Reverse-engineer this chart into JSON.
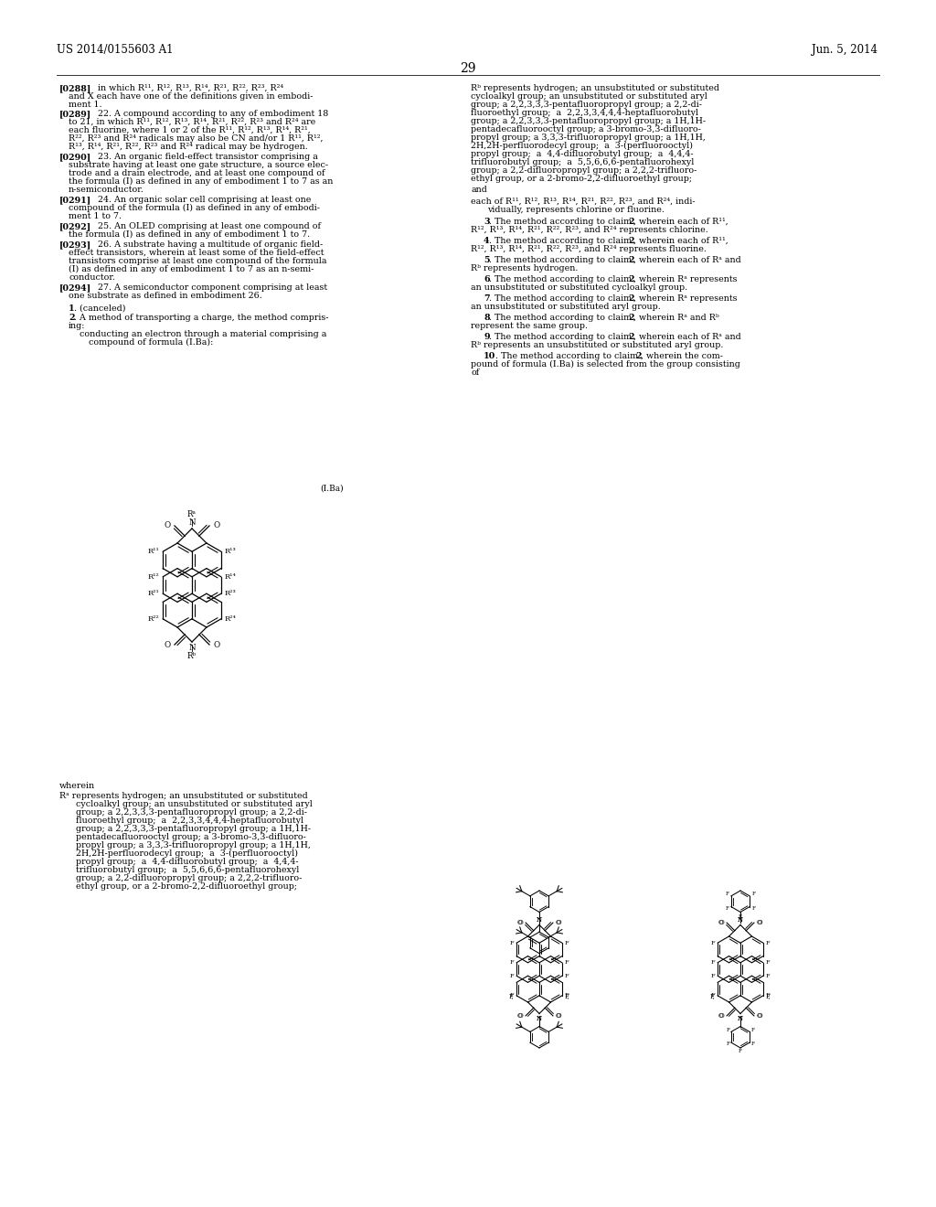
{
  "patent_number": "US 2014/0155603 A1",
  "date": "Jun. 5, 2014",
  "page": "29",
  "bg_color": "#ffffff"
}
